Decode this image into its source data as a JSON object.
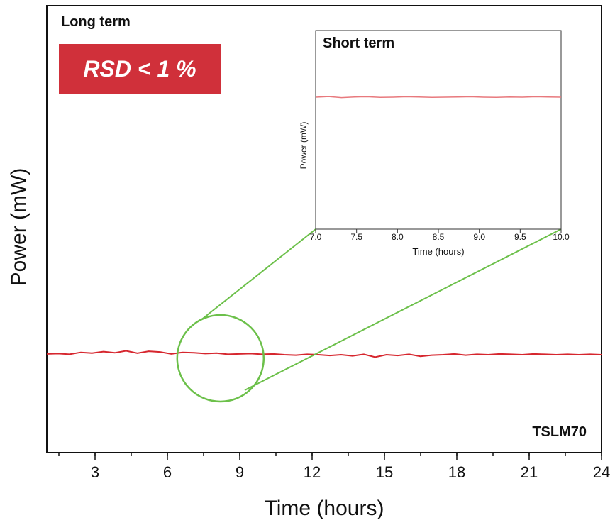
{
  "chart_data": [
    {
      "type": "line",
      "title": "Long term",
      "xlabel": "Time (hours)",
      "ylabel": "Power (mW)",
      "xlim": [
        1,
        24
      ],
      "xticks": [
        "3",
        "6",
        "9",
        "12",
        "15",
        "18",
        "21",
        "24"
      ],
      "yticks": [],
      "grid": false,
      "series": [
        {
          "values": [
            0.2,
            0.3,
            0.1,
            0.6,
            0.4,
            0.8,
            0.5,
            1.0,
            0.4,
            0.9,
            0.7,
            0.2,
            0.6,
            0.5,
            0.3,
            0.4,
            0.1,
            0.2,
            0.3,
            0.1,
            0.2,
            0.0,
            -0.1,
            0.1,
            0.0,
            -0.2,
            0.0,
            -0.3,
            0.1,
            -0.6,
            0.0,
            -0.2,
            0.1,
            -0.4,
            -0.1,
            0.0,
            0.2,
            -0.1,
            0.1,
            0.0,
            0.2,
            0.1,
            0.0,
            0.2,
            0.1,
            0.0,
            0.1,
            0.0,
            0.1,
            0.0
          ]
        }
      ],
      "annotations": [
        "RSD < 1 %",
        "TSLM70"
      ]
    },
    {
      "type": "line",
      "title": "Short term",
      "xlabel": "Time (hours)",
      "ylabel": "Power (mW)",
      "xlim": [
        7.0,
        10.0
      ],
      "xticks": [
        "7.0",
        "7.5",
        "8.0",
        "8.5",
        "9.0",
        "9.5",
        "10.0"
      ],
      "yticks": [],
      "grid": false,
      "series": [
        {
          "values": [
            0.0,
            0.3,
            -0.2,
            0.1,
            0.2,
            -0.1,
            0.0,
            0.2,
            0.1,
            -0.1,
            0.0,
            0.1,
            0.2,
            0.0,
            -0.1,
            0.1,
            0.0,
            0.2,
            0.1,
            0.0
          ]
        }
      ]
    }
  ],
  "colors": {
    "series": "#d6262e",
    "inset_series": "#e8797d",
    "zoom": "#6cc04a",
    "badge": "#d0303a",
    "axes": "#111111"
  },
  "labels": {
    "long_term": "Long term",
    "rsd": "RSD < 1 %",
    "short_term": "Short term",
    "model": "TSLM70",
    "y_main": "Power (mW)",
    "x_main": "Time (hours)",
    "y_inset": "Power (mW)",
    "x_inset": "Time (hours)"
  }
}
